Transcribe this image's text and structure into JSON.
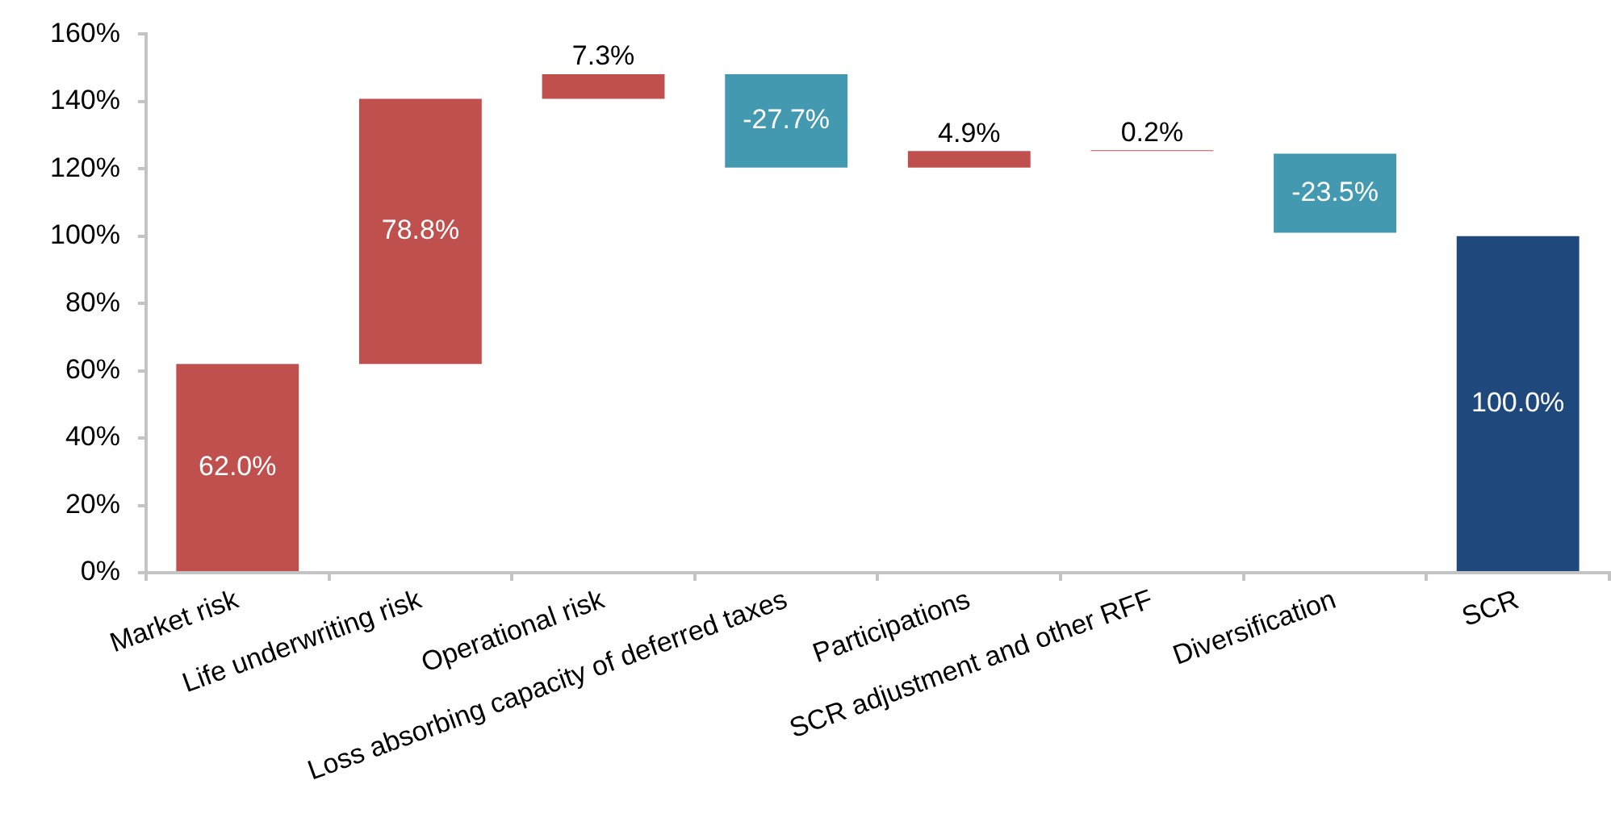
{
  "chart_data": {
    "type": "bar",
    "categories": [
      "Market risk",
      "Life underwriting risk",
      "Operational risk",
      "Loss absorbing capacity of deferred taxes",
      "Participations",
      "SCR adjustment and other RFF",
      "Diversification",
      "SCR"
    ],
    "values": [
      62.0,
      78.8,
      7.3,
      -27.7,
      4.9,
      0.2,
      -23.5,
      100.0
    ],
    "base": [
      0,
      62.0,
      140.8,
      148.1,
      120.4,
      125.3,
      124.5,
      0
    ],
    "colors": [
      "#c0504d",
      "#c0504d",
      "#c0504d",
      "#4399b0",
      "#c0504d",
      "#c0504d",
      "#4399b0",
      "#1f497d"
    ],
    "value_labels": [
      "62.0%",
      "78.8%",
      "7.3%",
      "-27.7%",
      "4.9%",
      "0.2%",
      "-23.5%",
      "100.0%"
    ],
    "ylim": [
      0,
      160
    ],
    "yticks": [
      {
        "value": 0,
        "label": "0%"
      },
      {
        "value": 20,
        "label": "20%"
      },
      {
        "value": 40,
        "label": "40%"
      },
      {
        "value": 60,
        "label": "60%"
      },
      {
        "value": 80,
        "label": "80%"
      },
      {
        "value": 100,
        "label": "100%"
      },
      {
        "value": 120,
        "label": "120%"
      },
      {
        "value": 140,
        "label": "140%"
      },
      {
        "value": 160,
        "label": "160%"
      }
    ]
  }
}
